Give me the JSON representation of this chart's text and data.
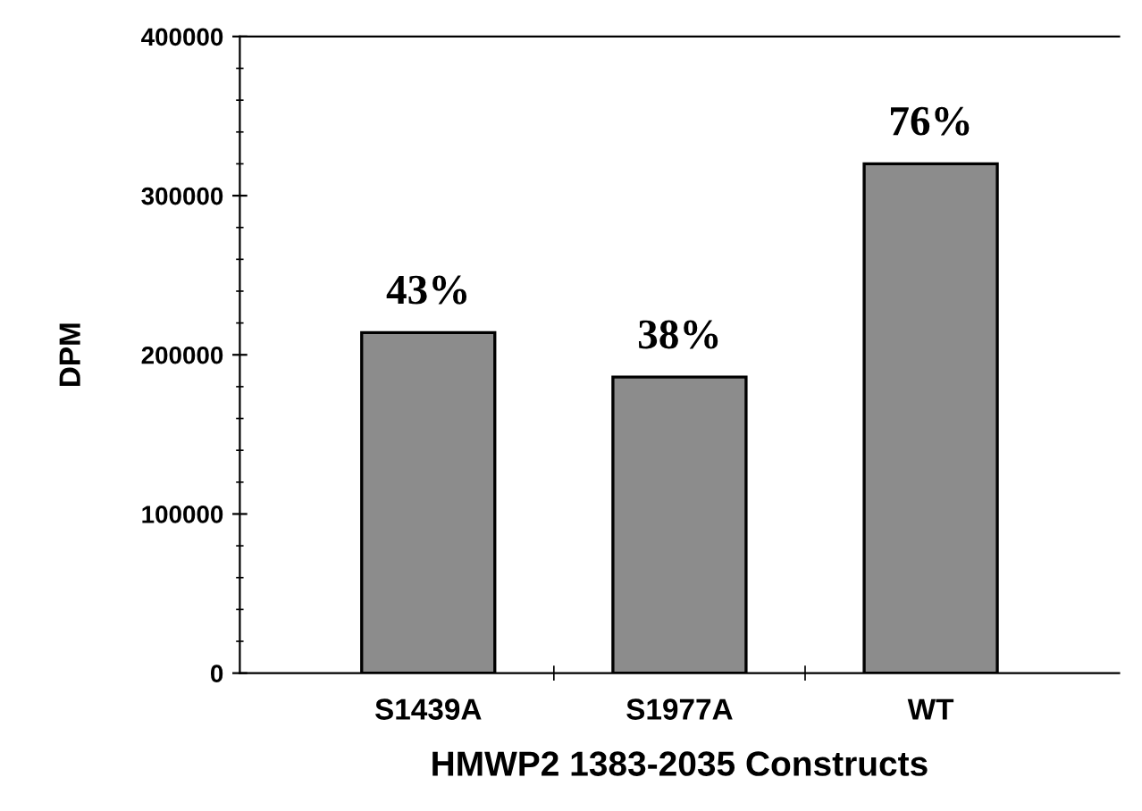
{
  "chart_data": {
    "type": "bar",
    "xlabel": "HMWP2 1383-2035 Constructs",
    "ylabel": "DPM",
    "categories": [
      "S1439A",
      "S1977A",
      "WT"
    ],
    "values": [
      214000,
      186000,
      320000
    ],
    "annotations": [
      {
        "text": "43%",
        "x": "S1439A",
        "y": 214000
      },
      {
        "text": "38%",
        "x": "S1977A",
        "y": 186000
      },
      {
        "text": "76%",
        "x": "WT",
        "y": 320000
      }
    ],
    "color": "#8c8c8c",
    "ylim": [
      0,
      400000
    ],
    "yticks": [
      0,
      100000,
      200000,
      300000,
      400000
    ],
    "grid": false,
    "legend": false
  }
}
